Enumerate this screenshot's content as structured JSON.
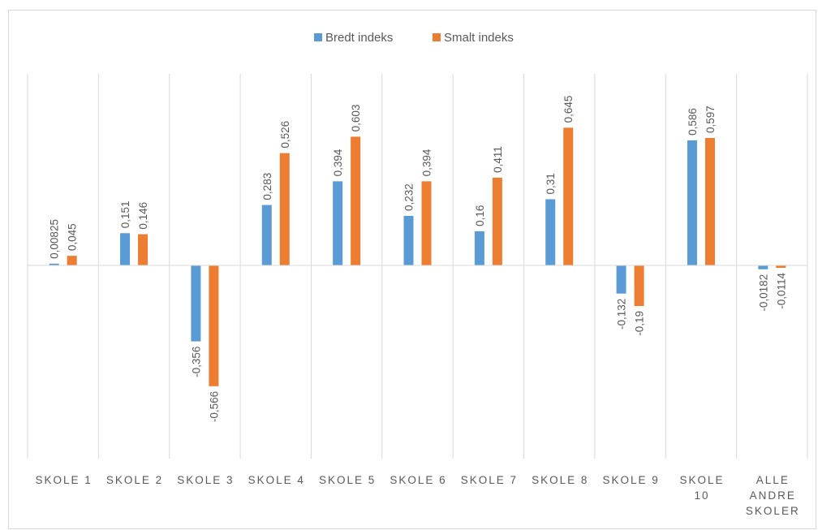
{
  "chart_data": {
    "type": "bar",
    "categories": [
      [
        "SKOLE 1"
      ],
      [
        "SKOLE 2"
      ],
      [
        "SKOLE 3"
      ],
      [
        "SKOLE 4"
      ],
      [
        "SKOLE 5"
      ],
      [
        "SKOLE 6"
      ],
      [
        "SKOLE 7"
      ],
      [
        "SKOLE 8"
      ],
      [
        "SKOLE 9"
      ],
      [
        "SKOLE",
        "10"
      ],
      [
        "ALLE",
        "ANDRE",
        "SKOLER"
      ]
    ],
    "series": [
      {
        "name": "Bredt indeks",
        "color": "#5B9BD5",
        "values": [
          0.00825,
          0.151,
          -0.356,
          0.283,
          0.394,
          0.232,
          0.16,
          0.31,
          -0.132,
          0.586,
          -0.0182
        ],
        "labels": [
          "0,00825",
          "0,151",
          "-0,356",
          "0,283",
          "0,394",
          "0,232",
          "0,16",
          "0,31",
          "-0,132",
          "0,586",
          "-0,0182"
        ]
      },
      {
        "name": "Smalt indeks",
        "color": "#ED7D31",
        "values": [
          0.045,
          0.146,
          -0.566,
          0.526,
          0.603,
          0.394,
          0.411,
          0.645,
          -0.19,
          0.597,
          -0.0114
        ],
        "labels": [
          "0,045",
          "0,146",
          "-0,566",
          "0,526",
          "0,603",
          "0,394",
          "0,411",
          "0,645",
          "-0,19",
          "0,597",
          "-0,0114"
        ]
      }
    ],
    "legend_position": "top",
    "grid": "vertical category separators",
    "ylim": [
      -0.8,
      0.8
    ]
  }
}
